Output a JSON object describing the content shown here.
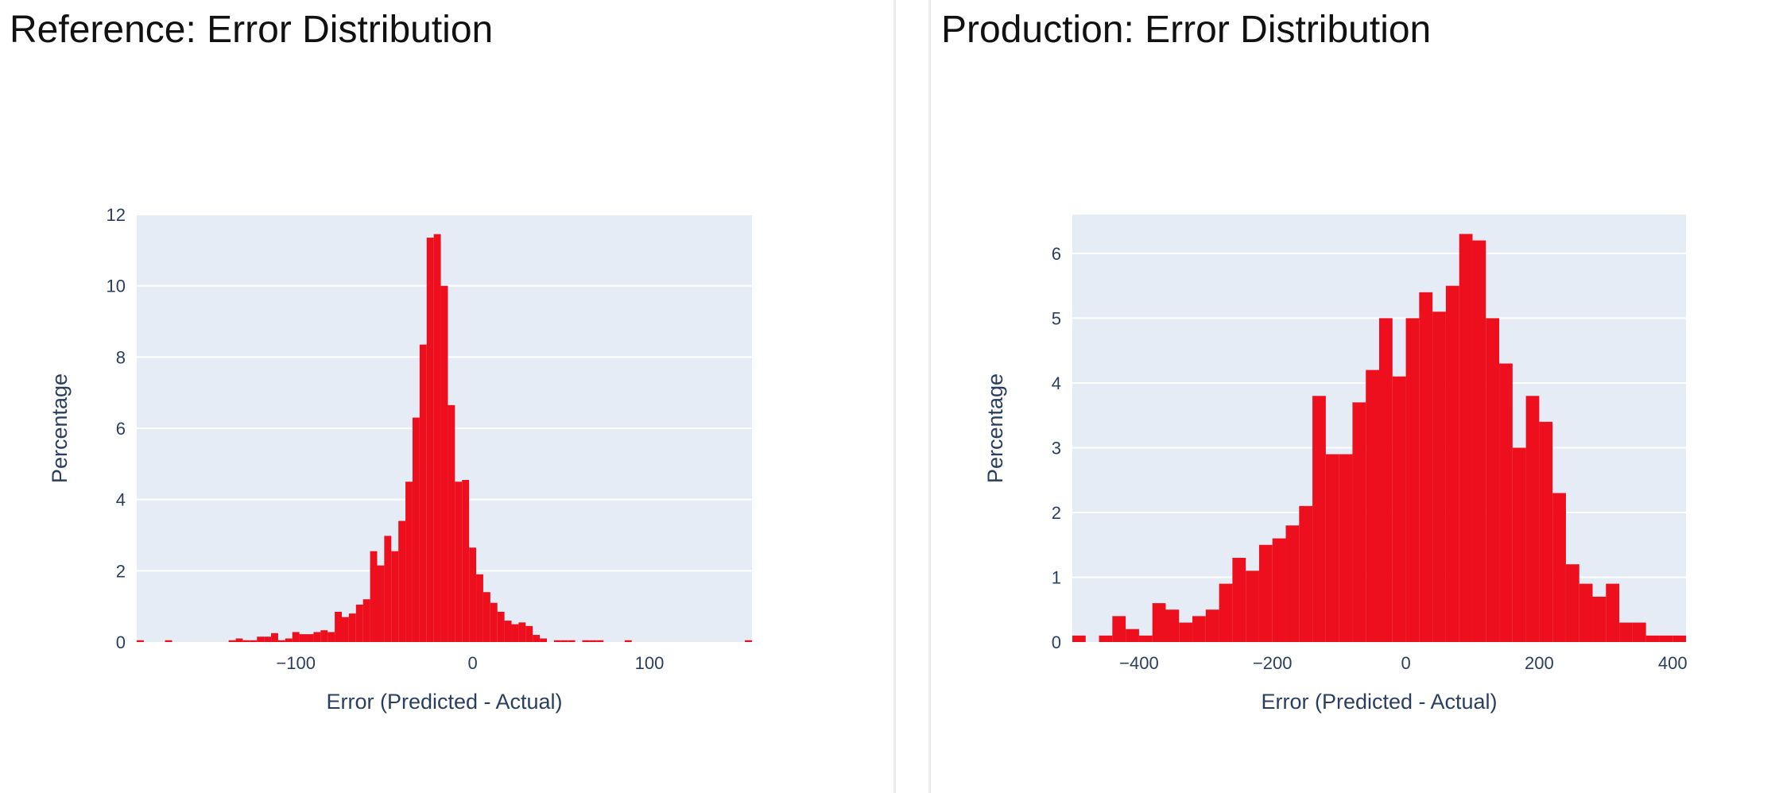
{
  "panels": [
    {
      "title": "Reference: Error Distribution"
    },
    {
      "title": "Production: Error Distribution"
    }
  ],
  "colors": {
    "bar": "#ed0f1d",
    "plot_bg": "#e5ecf6",
    "grid": "#ffffff",
    "axis_text": "#2a3f5f"
  },
  "chart_data": [
    {
      "type": "bar",
      "subtype": "histogram",
      "title": "Reference: Error Distribution",
      "xlabel": "Error (Predicted - Actual)",
      "ylabel": "Percentage",
      "xlim": [
        -190,
        158
      ],
      "ylim": [
        0,
        12
      ],
      "x_ticks": [
        -100,
        0,
        100
      ],
      "y_ticks": [
        0,
        2,
        4,
        6,
        8,
        10,
        12
      ],
      "grid": true,
      "bin_width": 4,
      "bins": [
        {
          "x0": -190,
          "y": 0.05
        },
        {
          "x0": -174,
          "y": 0.05
        },
        {
          "x0": -138,
          "y": 0.05
        },
        {
          "x0": -134,
          "y": 0.1
        },
        {
          "x0": -130,
          "y": 0.05
        },
        {
          "x0": -126,
          "y": 0.05
        },
        {
          "x0": -122,
          "y": 0.15
        },
        {
          "x0": -118,
          "y": 0.15
        },
        {
          "x0": -114,
          "y": 0.25
        },
        {
          "x0": -110,
          "y": 0.05
        },
        {
          "x0": -106,
          "y": 0.1
        },
        {
          "x0": -102,
          "y": 0.28
        },
        {
          "x0": -98,
          "y": 0.22
        },
        {
          "x0": -94,
          "y": 0.22
        },
        {
          "x0": -90,
          "y": 0.28
        },
        {
          "x0": -86,
          "y": 0.33
        },
        {
          "x0": -82,
          "y": 0.28
        },
        {
          "x0": -78,
          "y": 0.85
        },
        {
          "x0": -74,
          "y": 0.7
        },
        {
          "x0": -70,
          "y": 0.8
        },
        {
          "x0": -66,
          "y": 1.05
        },
        {
          "x0": -62,
          "y": 1.2
        },
        {
          "x0": -58,
          "y": 2.55
        },
        {
          "x0": -54,
          "y": 2.15
        },
        {
          "x0": -50,
          "y": 2.98
        },
        {
          "x0": -46,
          "y": 2.55
        },
        {
          "x0": -42,
          "y": 3.4
        },
        {
          "x0": -38,
          "y": 4.5
        },
        {
          "x0": -34,
          "y": 6.3
        },
        {
          "x0": -30,
          "y": 8.35
        },
        {
          "x0": -26,
          "y": 11.35
        },
        {
          "x0": -22,
          "y": 11.45
        },
        {
          "x0": -18,
          "y": 10.0
        },
        {
          "x0": -14,
          "y": 6.65
        },
        {
          "x0": -10,
          "y": 4.5
        },
        {
          "x0": -6,
          "y": 4.55
        },
        {
          "x0": -2,
          "y": 2.65
        },
        {
          "x0": 2,
          "y": 1.9
        },
        {
          "x0": 6,
          "y": 1.4
        },
        {
          "x0": 10,
          "y": 1.1
        },
        {
          "x0": 14,
          "y": 0.85
        },
        {
          "x0": 18,
          "y": 0.6
        },
        {
          "x0": 22,
          "y": 0.5
        },
        {
          "x0": 26,
          "y": 0.55
        },
        {
          "x0": 30,
          "y": 0.45
        },
        {
          "x0": 34,
          "y": 0.2
        },
        {
          "x0": 38,
          "y": 0.1
        },
        {
          "x0": 46,
          "y": 0.05
        },
        {
          "x0": 50,
          "y": 0.05
        },
        {
          "x0": 54,
          "y": 0.05
        },
        {
          "x0": 62,
          "y": 0.05
        },
        {
          "x0": 66,
          "y": 0.05
        },
        {
          "x0": 70,
          "y": 0.05
        },
        {
          "x0": 86,
          "y": 0.05
        },
        {
          "x0": 154,
          "y": 0.05
        }
      ]
    },
    {
      "type": "bar",
      "subtype": "histogram",
      "title": "Production: Error Distribution",
      "xlabel": "Error (Predicted - Actual)",
      "ylabel": "Percentage",
      "xlim": [
        -500,
        420
      ],
      "ylim": [
        0,
        6.6
      ],
      "x_ticks": [
        -400,
        -200,
        0,
        200,
        400
      ],
      "y_ticks": [
        0,
        1,
        2,
        3,
        4,
        5,
        6
      ],
      "grid": true,
      "bin_width": 20,
      "bins": [
        {
          "x0": -500,
          "y": 0.1
        },
        {
          "x0": -460,
          "y": 0.1
        },
        {
          "x0": -440,
          "y": 0.4
        },
        {
          "x0": -420,
          "y": 0.2
        },
        {
          "x0": -400,
          "y": 0.1
        },
        {
          "x0": -380,
          "y": 0.6
        },
        {
          "x0": -360,
          "y": 0.5
        },
        {
          "x0": -340,
          "y": 0.3
        },
        {
          "x0": -320,
          "y": 0.4
        },
        {
          "x0": -300,
          "y": 0.5
        },
        {
          "x0": -280,
          "y": 0.9
        },
        {
          "x0": -260,
          "y": 1.3
        },
        {
          "x0": -240,
          "y": 1.1
        },
        {
          "x0": -220,
          "y": 1.5
        },
        {
          "x0": -200,
          "y": 1.6
        },
        {
          "x0": -180,
          "y": 1.8
        },
        {
          "x0": -160,
          "y": 2.1
        },
        {
          "x0": -140,
          "y": 3.8
        },
        {
          "x0": -120,
          "y": 2.9
        },
        {
          "x0": -100,
          "y": 2.9
        },
        {
          "x0": -80,
          "y": 3.7
        },
        {
          "x0": -60,
          "y": 4.2
        },
        {
          "x0": -40,
          "y": 5.0
        },
        {
          "x0": -20,
          "y": 4.1
        },
        {
          "x0": 0,
          "y": 5.0
        },
        {
          "x0": 20,
          "y": 5.4
        },
        {
          "x0": 40,
          "y": 5.1
        },
        {
          "x0": 60,
          "y": 5.5
        },
        {
          "x0": 80,
          "y": 6.3
        },
        {
          "x0": 100,
          "y": 6.2
        },
        {
          "x0": 120,
          "y": 5.0
        },
        {
          "x0": 140,
          "y": 4.3
        },
        {
          "x0": 160,
          "y": 3.0
        },
        {
          "x0": 180,
          "y": 3.8
        },
        {
          "x0": 200,
          "y": 3.4
        },
        {
          "x0": 220,
          "y": 2.3
        },
        {
          "x0": 240,
          "y": 1.2
        },
        {
          "x0": 260,
          "y": 0.9
        },
        {
          "x0": 280,
          "y": 0.7
        },
        {
          "x0": 300,
          "y": 0.9
        },
        {
          "x0": 320,
          "y": 0.3
        },
        {
          "x0": 340,
          "y": 0.3
        },
        {
          "x0": 360,
          "y": 0.1
        },
        {
          "x0": 380,
          "y": 0.1
        },
        {
          "x0": 400,
          "y": 0.1
        }
      ]
    }
  ]
}
